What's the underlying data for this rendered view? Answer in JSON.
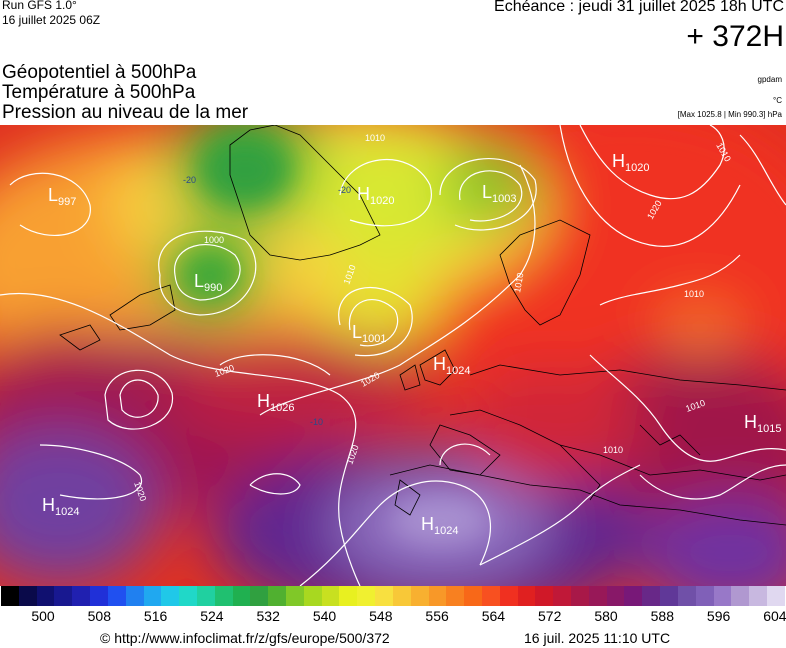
{
  "header": {
    "run_title": "Run GFS 1.0°",
    "run_date": "16 juillet 2025 06Z",
    "valid_time": "Echéance : jeudi 31 juillet 2025 18h UTC",
    "forecast_hour": "+ 372H"
  },
  "fields": [
    "Géopotentiel à 500hPa",
    "Température à 500hPa",
    "Pression au niveau de la mer"
  ],
  "units": {
    "geopotential": "gpdam",
    "temperature": "°C",
    "pressure_range": "[Max 1025.8 | Min 990.3] hPa"
  },
  "pressure_centers": [
    {
      "type": "L",
      "value": "997"
    },
    {
      "type": "H",
      "value": "1020"
    },
    {
      "type": "L",
      "value": "1003"
    },
    {
      "type": "H",
      "value": "1020"
    },
    {
      "type": "L",
      "value": "990"
    },
    {
      "type": "L",
      "value": "1001"
    },
    {
      "type": "H",
      "value": "1024"
    },
    {
      "type": "H",
      "value": "1026"
    },
    {
      "type": "H",
      "value": "1015"
    },
    {
      "type": "H",
      "value": "1024"
    },
    {
      "type": "H",
      "value": "1024"
    }
  ],
  "isobar_labels": [
    "1010",
    "1000",
    "1010",
    "1020",
    "1020",
    "1020",
    "1020",
    "1010",
    "1010",
    "1010",
    "1020",
    "1010",
    "1010"
  ],
  "temperature_labels": [
    "-20",
    "-20",
    "-10"
  ],
  "colorbar": {
    "ticks": [
      "500",
      "508",
      "516",
      "524",
      "532",
      "540",
      "548",
      "556",
      "564",
      "572",
      "580",
      "588",
      "596",
      "604"
    ],
    "colors": [
      "#000000",
      "#0a0a4a",
      "#101070",
      "#181890",
      "#2020b0",
      "#2030d8",
      "#2050f0",
      "#2080f0",
      "#20a8f0",
      "#20c8e8",
      "#20d8c8",
      "#20d0a0",
      "#20c070",
      "#20b050",
      "#30a040",
      "#50b030",
      "#80c828",
      "#a8d820",
      "#c8e020",
      "#e8f020",
      "#f0f030",
      "#f8e040",
      "#f8c838",
      "#f8b030",
      "#f89828",
      "#f88020",
      "#f86818",
      "#f85020",
      "#f03020",
      "#e02020",
      "#d01828",
      "#c01838",
      "#a81848",
      "#981858",
      "#881868",
      "#781878",
      "#682888",
      "#603898",
      "#7050a8",
      "#8060b8",
      "#9878c8",
      "#b098d0",
      "#c8b8e0",
      "#e0d8f0"
    ]
  },
  "footer": {
    "credit": "© http://www.infoclimat.fr/z/gfs/europe/500/372",
    "generated": "16 juil. 2025 11:10 UTC"
  }
}
